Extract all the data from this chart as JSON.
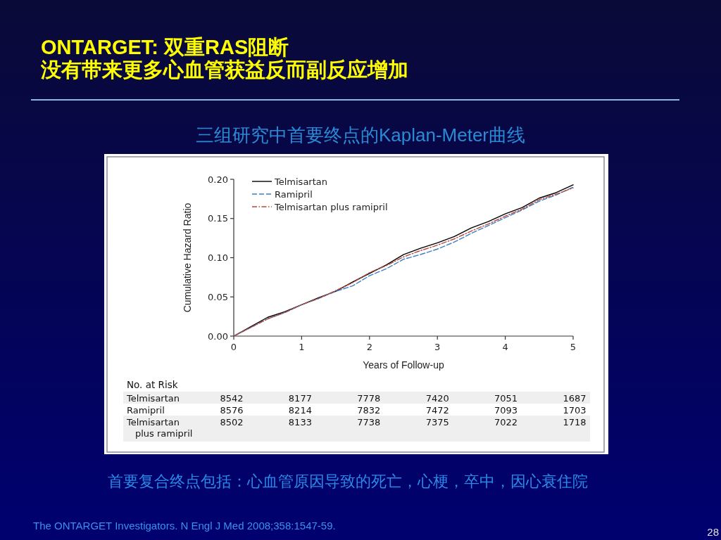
{
  "chart_data": {
    "type": "line",
    "title": "ONTARGET: 双重RAS阻断",
    "subtitle": "没有带来更多心血管获益反而副反应增加",
    "xlabel": "Years of Follow-up",
    "ylabel": "Cumulative Hazard Ratio",
    "x": [
      0,
      0.25,
      0.5,
      0.75,
      1,
      1.25,
      1.5,
      1.75,
      2,
      2.25,
      2.5,
      2.75,
      3,
      3.25,
      3.5,
      3.75,
      4,
      4.25,
      4.5,
      4.75,
      5
    ],
    "series": [
      {
        "name": "Telmisartan",
        "color": "#000000",
        "line_style": "solid",
        "values": [
          0,
          0.012,
          0.024,
          0.031,
          0.04,
          0.049,
          0.057,
          0.069,
          0.08,
          0.091,
          0.104,
          0.112,
          0.119,
          0.127,
          0.138,
          0.146,
          0.156,
          0.164,
          0.176,
          0.183,
          0.193
        ]
      },
      {
        "name": "Ramipril",
        "color": "#3b7fc4",
        "line_style": "dashed",
        "values": [
          0,
          0.011,
          0.022,
          0.03,
          0.04,
          0.048,
          0.057,
          0.064,
          0.077,
          0.086,
          0.098,
          0.104,
          0.111,
          0.12,
          0.131,
          0.141,
          0.151,
          0.161,
          0.172,
          0.18,
          0.19
        ]
      },
      {
        "name": "Telmisartan plus ramipril",
        "color": "#b8483c",
        "line_style": "dashdot",
        "values": [
          0,
          0.011,
          0.022,
          0.03,
          0.04,
          0.048,
          0.058,
          0.068,
          0.081,
          0.09,
          0.101,
          0.109,
          0.116,
          0.124,
          0.134,
          0.143,
          0.153,
          0.162,
          0.174,
          0.181,
          0.189
        ]
      }
    ],
    "xlim": [
      0,
      5
    ],
    "ylim": [
      0,
      0.2
    ],
    "xticks": [
      0,
      1,
      2,
      3,
      4,
      5
    ],
    "yticks": [
      {
        "value": 0,
        "label": "0.00"
      },
      {
        "value": 0.05,
        "label": "0.05"
      },
      {
        "value": 0.1,
        "label": "0.10"
      },
      {
        "value": 0.15,
        "label": "0.15"
      },
      {
        "value": 0.2,
        "label": "0.20"
      }
    ],
    "legend": "top left",
    "annotations": [
      "三组研究中首要终点的Kaplan-Meter曲线",
      "No. at Risk",
      "Telmisartan",
      "8542",
      "8177",
      "7778",
      "7420",
      "7051",
      "1687",
      "Ramipril",
      "8576",
      "8214",
      "7832",
      "7472",
      "7093",
      "1703",
      "Telmisartan plus ramipril",
      "8502",
      "8133",
      "7738",
      "7375",
      "7022",
      "1718",
      "首要复合终点包括：心血管原因导致的死亡，心梗，卒中，因心衰住院",
      "The ONTARGET Investigators. N Engl J Med 2008;358:1547-59.",
      "28"
    ]
  }
}
